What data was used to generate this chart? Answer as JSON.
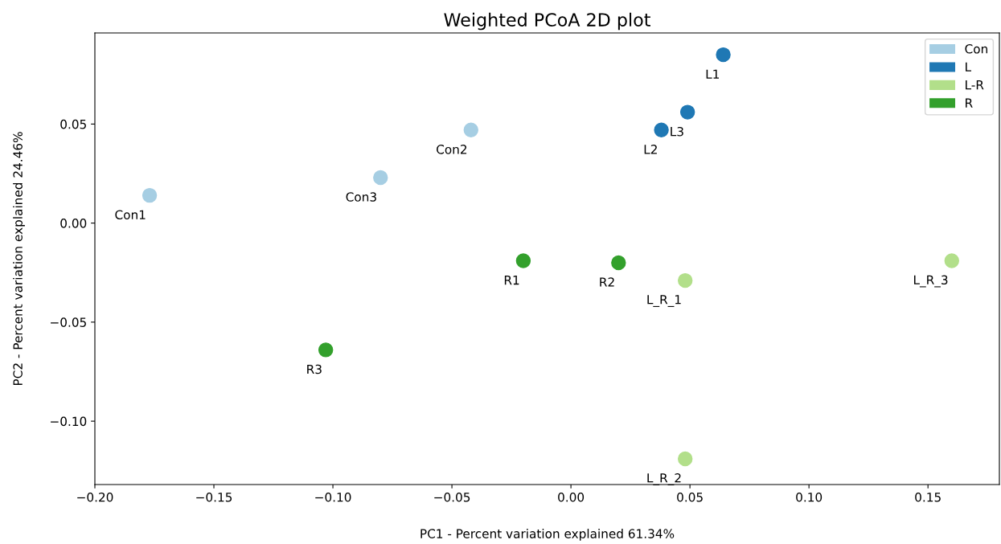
{
  "chart_data": {
    "type": "scatter",
    "title": "Weighted PCoA 2D plot",
    "xlabel": "PC1 - Percent variation explained 61.34%",
    "ylabel": "PC2 - Percent variation explained 24.46%",
    "series": [
      {
        "name": "Con",
        "color": "#a6cee3",
        "x": [
          -0.177,
          -0.042,
          -0.08
        ],
        "values": [
          0.014,
          0.047,
          0.023
        ]
      },
      {
        "name": "L",
        "color": "#1f78b4",
        "x": [
          0.064,
          0.038,
          0.049
        ],
        "values": [
          0.085,
          0.047,
          0.056
        ]
      },
      {
        "name": "L-R",
        "color": "#b2df8a",
        "x": [
          0.048,
          0.048,
          0.16
        ],
        "values": [
          -0.029,
          -0.119,
          -0.019
        ]
      },
      {
        "name": "R",
        "color": "#33a02c",
        "x": [
          -0.02,
          0.02,
          -0.103
        ],
        "values": [
          -0.019,
          -0.02,
          -0.064
        ]
      }
    ],
    "annotations": [
      {
        "text": "Con1",
        "x": -0.177,
        "y": 0.014
      },
      {
        "text": "Con2",
        "x": -0.042,
        "y": 0.047
      },
      {
        "text": "Con3",
        "x": -0.08,
        "y": 0.023
      },
      {
        "text": "L1",
        "x": 0.064,
        "y": 0.085
      },
      {
        "text": "L2",
        "x": 0.038,
        "y": 0.047
      },
      {
        "text": "L3",
        "x": 0.049,
        "y": 0.056
      },
      {
        "text": "L_R_1",
        "x": 0.048,
        "y": -0.029
      },
      {
        "text": "L_R_2",
        "x": 0.048,
        "y": -0.119
      },
      {
        "text": "L_R_3",
        "x": 0.16,
        "y": -0.019
      },
      {
        "text": "R1",
        "x": -0.02,
        "y": -0.019
      },
      {
        "text": "R2",
        "x": 0.02,
        "y": -0.02
      },
      {
        "text": "R3",
        "x": -0.103,
        "y": -0.064
      }
    ],
    "xlim": [
      -0.2,
      0.18
    ],
    "ylim": [
      -0.132,
      0.096
    ],
    "xticks": [
      {
        "value": -0.2,
        "label": "−0.20"
      },
      {
        "value": -0.15,
        "label": "−0.15"
      },
      {
        "value": -0.1,
        "label": "−0.10"
      },
      {
        "value": -0.05,
        "label": "−0.05"
      },
      {
        "value": 0,
        "label": "0.00"
      },
      {
        "value": 0.05,
        "label": "0.05"
      },
      {
        "value": 0.1,
        "label": "0.10"
      },
      {
        "value": 0.15,
        "label": "0.15"
      }
    ],
    "yticks": [
      {
        "value": -0.1,
        "label": "−0.10"
      },
      {
        "value": -0.05,
        "label": "−0.05"
      },
      {
        "value": 0,
        "label": "0.00"
      },
      {
        "value": 0.05,
        "label": "0.05"
      }
    ],
    "marker": "circle",
    "legend": "top right",
    "grid": false
  }
}
